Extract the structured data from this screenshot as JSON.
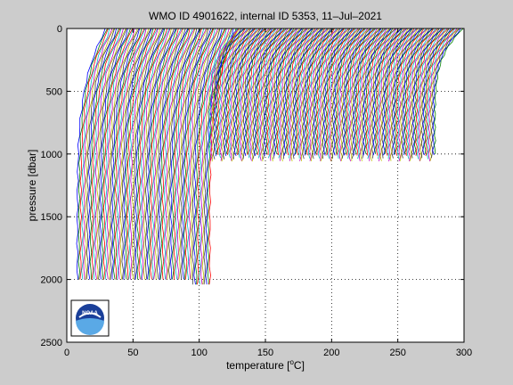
{
  "chart_data": {
    "type": "line",
    "title": "WMO ID 4901622, internal ID 5353, 11–Jul–2021",
    "xlabel_prefix": "temperature [",
    "xlabel_sup": "o",
    "xlabel_suffix": "C]",
    "ylabel": "pressure [dbar]",
    "xlim": [
      0,
      300
    ],
    "ylim": [
      0,
      2500
    ],
    "y_reversed": true,
    "grid": true,
    "xticks": [
      0,
      50,
      100,
      150,
      200,
      250,
      300
    ],
    "yticks": [
      0,
      500,
      1000,
      1500,
      2000,
      2500
    ],
    "logo_text": "NOAA",
    "profile_colors": [
      "#0000ff",
      "#008000",
      "#ff0000",
      "#00bfbf",
      "#bf00bf",
      "#bfbf00",
      "#404040"
    ],
    "deep_profiles": {
      "count": 80,
      "first_start_x": 8,
      "last_start_x": 108,
      "surface_offset": 22,
      "bottom_pressure": 2000,
      "last_bottom_pressure": 2040
    },
    "shallow_profiles": {
      "count": 160,
      "first_start_x": 108,
      "last_start_x": 278,
      "surface_offset": 22,
      "bottom_pressure": 1030
    }
  }
}
